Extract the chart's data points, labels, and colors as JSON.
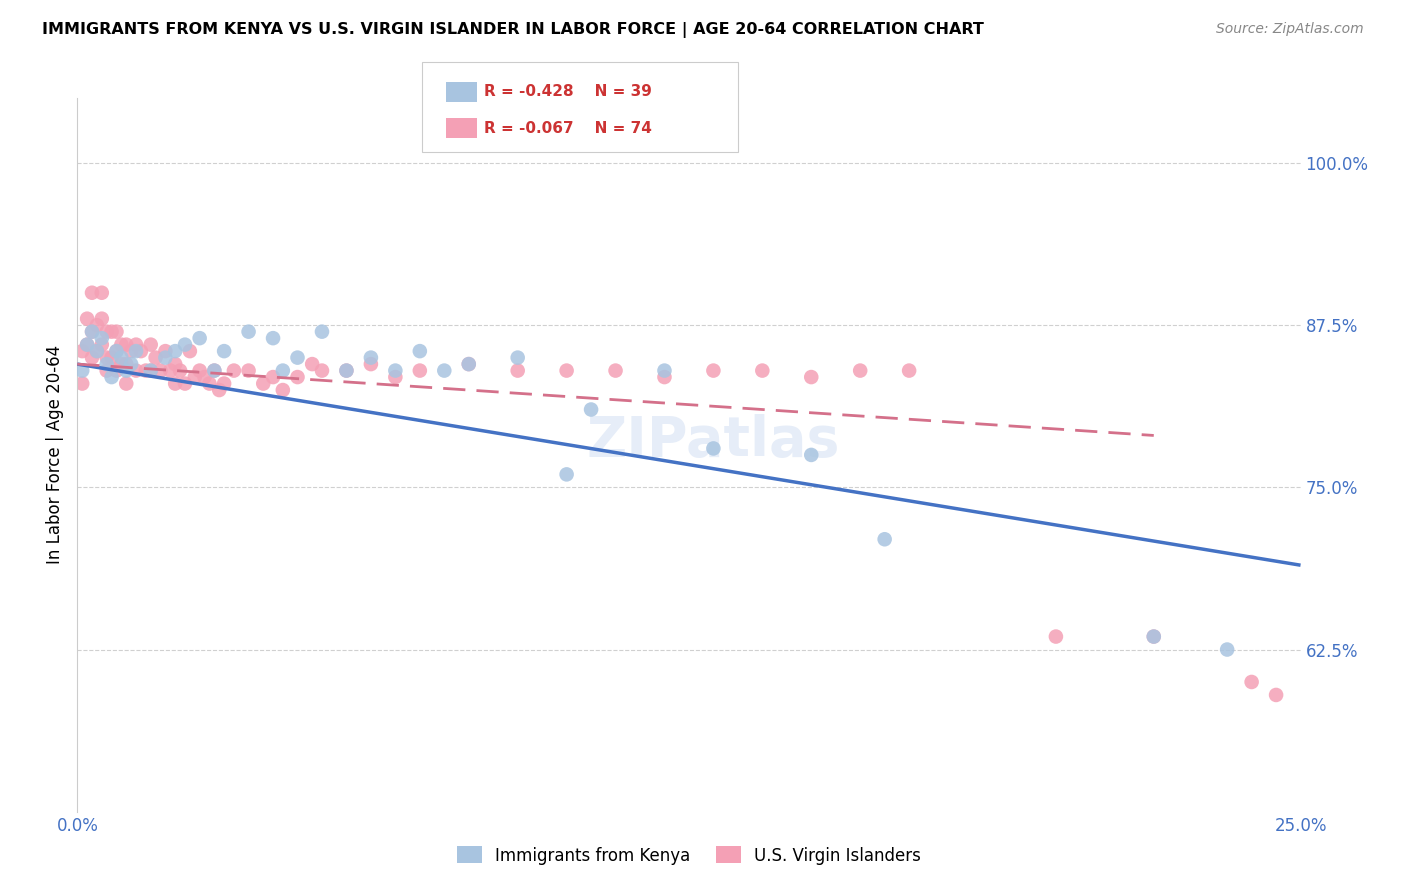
{
  "title": "IMMIGRANTS FROM KENYA VS U.S. VIRGIN ISLANDER IN LABOR FORCE | AGE 20-64 CORRELATION CHART",
  "source": "Source: ZipAtlas.com",
  "ylabel": "In Labor Force | Age 20-64",
  "xlim": [
    0.0,
    0.25
  ],
  "ylim": [
    0.5,
    1.05
  ],
  "xticks": [
    0.0,
    0.05,
    0.1,
    0.15,
    0.2,
    0.25
  ],
  "xticklabels": [
    "0.0%",
    "",
    "",
    "",
    "",
    "25.0%"
  ],
  "yticks_right": [
    0.625,
    0.75,
    0.875,
    1.0
  ],
  "yticklabels_right": [
    "62.5%",
    "75.0%",
    "87.5%",
    "100.0%"
  ],
  "kenya_color": "#a8c4e0",
  "virgin_color": "#f4a0b5",
  "kenya_line_color": "#4472c4",
  "virgin_line_color": "#d4708a",
  "legend_r_kenya": "-0.428",
  "legend_n_kenya": "39",
  "legend_r_virgin": "-0.067",
  "legend_n_virgin": "74",
  "watermark": "ZIPatlas",
  "kenya_x": [
    0.001,
    0.002,
    0.003,
    0.004,
    0.005,
    0.006,
    0.007,
    0.008,
    0.009,
    0.01,
    0.011,
    0.012,
    0.015,
    0.018,
    0.02,
    0.022,
    0.025,
    0.028,
    0.03,
    0.035,
    0.04,
    0.042,
    0.045,
    0.05,
    0.055,
    0.06,
    0.065,
    0.07,
    0.075,
    0.08,
    0.09,
    0.1,
    0.105,
    0.12,
    0.13,
    0.15,
    0.165,
    0.22,
    0.235
  ],
  "kenya_y": [
    0.84,
    0.86,
    0.87,
    0.855,
    0.865,
    0.845,
    0.835,
    0.855,
    0.85,
    0.84,
    0.845,
    0.855,
    0.84,
    0.85,
    0.855,
    0.86,
    0.865,
    0.84,
    0.855,
    0.87,
    0.865,
    0.84,
    0.85,
    0.87,
    0.84,
    0.85,
    0.84,
    0.855,
    0.84,
    0.845,
    0.85,
    0.76,
    0.81,
    0.84,
    0.78,
    0.775,
    0.71,
    0.635,
    0.625
  ],
  "virgin_x": [
    0.001,
    0.001,
    0.002,
    0.002,
    0.003,
    0.003,
    0.003,
    0.004,
    0.004,
    0.005,
    0.005,
    0.005,
    0.006,
    0.006,
    0.006,
    0.007,
    0.007,
    0.008,
    0.008,
    0.008,
    0.009,
    0.009,
    0.01,
    0.01,
    0.01,
    0.011,
    0.012,
    0.012,
    0.013,
    0.014,
    0.015,
    0.015,
    0.016,
    0.017,
    0.018,
    0.019,
    0.02,
    0.02,
    0.021,
    0.022,
    0.023,
    0.024,
    0.025,
    0.026,
    0.027,
    0.028,
    0.029,
    0.03,
    0.032,
    0.035,
    0.038,
    0.04,
    0.042,
    0.045,
    0.048,
    0.05,
    0.055,
    0.06,
    0.065,
    0.07,
    0.08,
    0.09,
    0.1,
    0.11,
    0.12,
    0.13,
    0.14,
    0.15,
    0.16,
    0.17,
    0.2,
    0.22,
    0.24,
    0.245
  ],
  "virgin_y": [
    0.855,
    0.83,
    0.88,
    0.86,
    0.9,
    0.87,
    0.85,
    0.875,
    0.855,
    0.9,
    0.88,
    0.86,
    0.87,
    0.85,
    0.84,
    0.87,
    0.85,
    0.87,
    0.855,
    0.84,
    0.86,
    0.845,
    0.86,
    0.845,
    0.83,
    0.855,
    0.86,
    0.84,
    0.855,
    0.84,
    0.86,
    0.84,
    0.85,
    0.84,
    0.855,
    0.84,
    0.845,
    0.83,
    0.84,
    0.83,
    0.855,
    0.835,
    0.84,
    0.835,
    0.83,
    0.84,
    0.825,
    0.83,
    0.84,
    0.84,
    0.83,
    0.835,
    0.825,
    0.835,
    0.845,
    0.84,
    0.84,
    0.845,
    0.835,
    0.84,
    0.845,
    0.84,
    0.84,
    0.84,
    0.835,
    0.84,
    0.84,
    0.835,
    0.84,
    0.84,
    0.635,
    0.635,
    0.6,
    0.59
  ],
  "kenya_line_x": [
    0.0,
    0.25
  ],
  "kenya_line_y": [
    0.845,
    0.69
  ],
  "virgin_line_x": [
    0.0,
    0.22
  ],
  "virgin_line_y": [
    0.845,
    0.79
  ]
}
